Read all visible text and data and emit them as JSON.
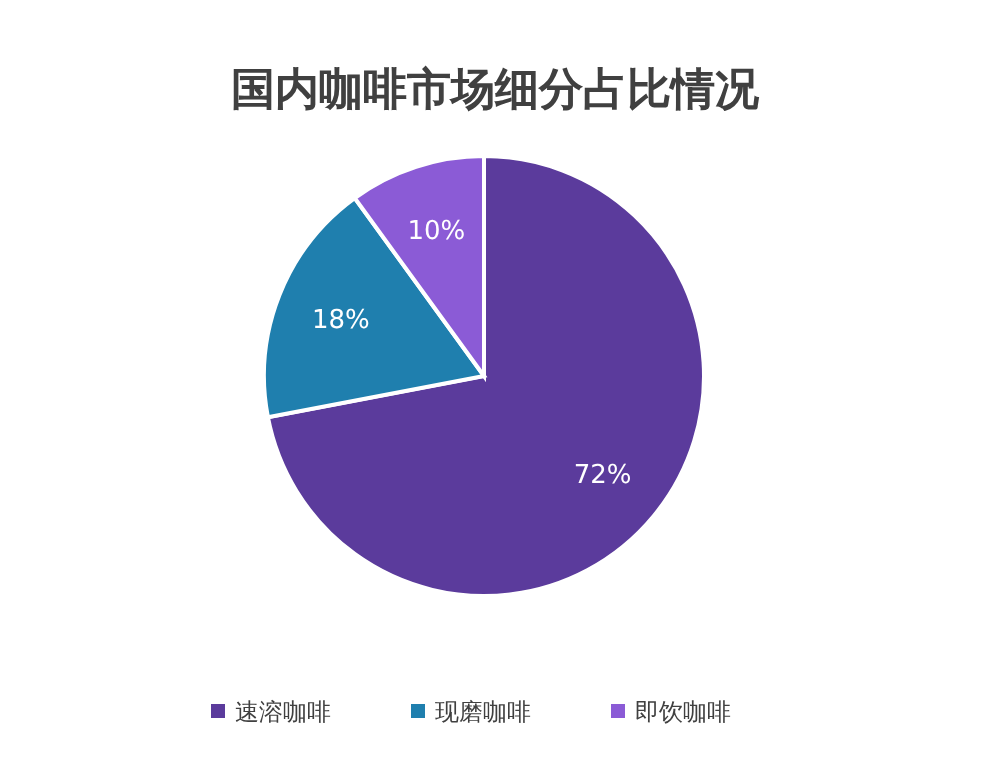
{
  "chart_data": {
    "type": "pie",
    "title": "国内咖啡市场细分占比情况",
    "categories": [
      "速溶咖啡",
      "现磨咖啡",
      "即饮咖啡"
    ],
    "values": [
      72,
      18,
      10
    ],
    "colors": [
      "#5b3b9c",
      "#1f7fae",
      "#8b5bd6"
    ],
    "value_labels": [
      "72%",
      "18%",
      "10%"
    ],
    "legend": "bottom"
  }
}
